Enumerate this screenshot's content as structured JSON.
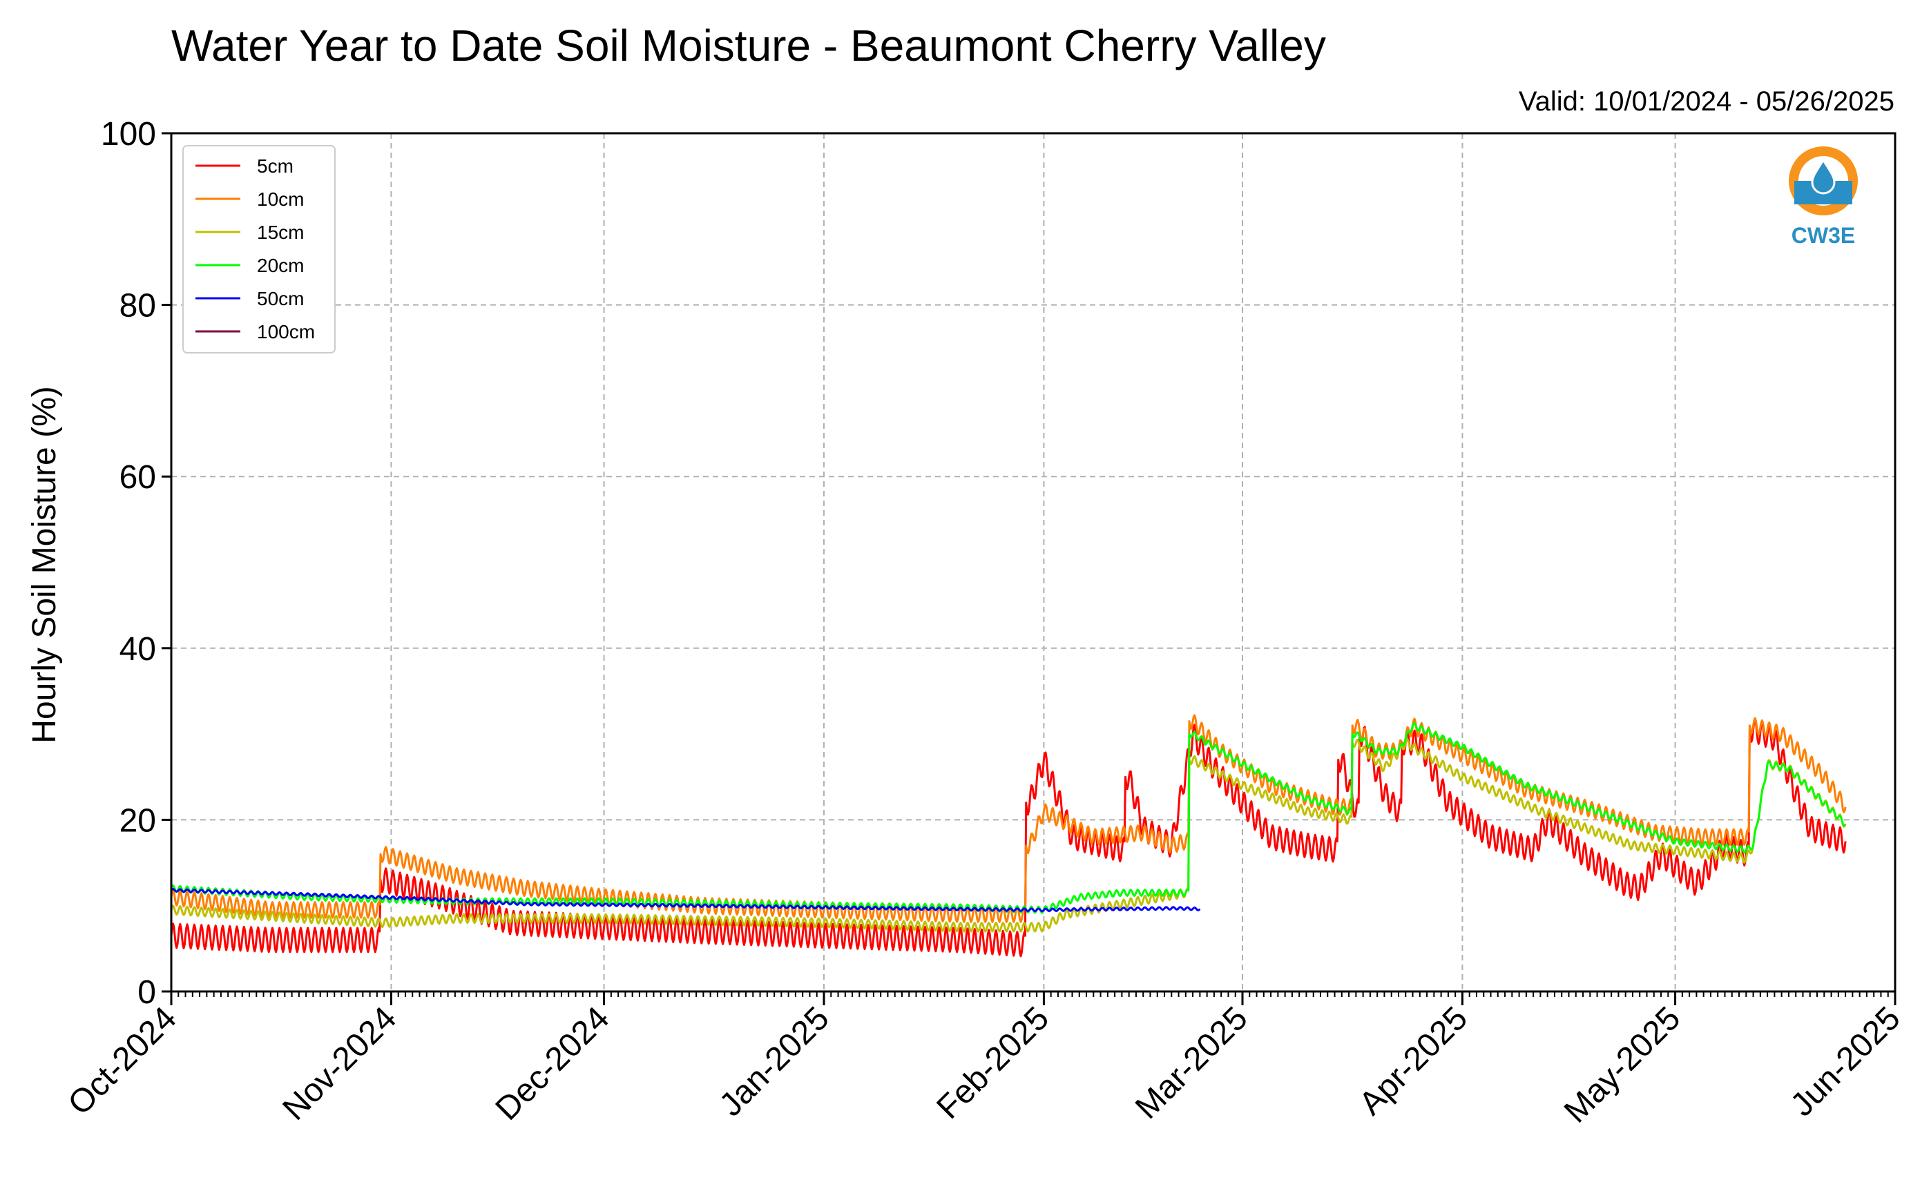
{
  "chart_data": {
    "type": "line",
    "title": "Water Year to Date Soil Moisture - Beaumont Cherry Valley",
    "subtitle": "Valid: 10/01/2024 - 05/26/2025",
    "ylabel": "Hourly Soil Moisture (%)",
    "xlabel": "",
    "ylim": [
      0,
      100
    ],
    "y_ticks": [
      0,
      20,
      40,
      60,
      80,
      100
    ],
    "x_ticks": [
      {
        "label": "Oct-2024",
        "date": "2024-10-01"
      },
      {
        "label": "Nov-2024",
        "date": "2024-11-01"
      },
      {
        "label": "Dec-2024",
        "date": "2024-12-01"
      },
      {
        "label": "Jan-2025",
        "date": "2025-01-01"
      },
      {
        "label": "Feb-2025",
        "date": "2025-02-01"
      },
      {
        "label": "Mar-2025",
        "date": "2025-03-01"
      },
      {
        "label": "Apr-2025",
        "date": "2025-04-01"
      },
      {
        "label": "May-2025",
        "date": "2025-05-01"
      },
      {
        "label": "Jun-2025",
        "date": "2025-06-01"
      }
    ],
    "xlim": [
      "2024-10-01",
      "2025-06-01"
    ],
    "grid": true,
    "legend_position": "top-left",
    "series": [
      {
        "name": "5cm",
        "color": "#ff0000",
        "points": [
          [
            "2024-10-01",
            6.5
          ],
          [
            "2024-10-15",
            6.0
          ],
          [
            "2024-10-30",
            6.0
          ],
          [
            "2024-10-31",
            13.0
          ],
          [
            "2024-11-08",
            11.0
          ],
          [
            "2024-11-18",
            8.0
          ],
          [
            "2024-12-01",
            7.5
          ],
          [
            "2024-12-15",
            7.0
          ],
          [
            "2025-01-01",
            6.5
          ],
          [
            "2025-01-20",
            6.0
          ],
          [
            "2025-01-29",
            5.5
          ],
          [
            "2025-01-30",
            22.0
          ],
          [
            "2025-02-01",
            27.0
          ],
          [
            "2025-02-05",
            18.0
          ],
          [
            "2025-02-12",
            16.5
          ],
          [
            "2025-02-13",
            25.0
          ],
          [
            "2025-02-15",
            19.0
          ],
          [
            "2025-02-19",
            17.0
          ],
          [
            "2025-02-22",
            30.0
          ],
          [
            "2025-02-25",
            26.0
          ],
          [
            "2025-03-05",
            18.0
          ],
          [
            "2025-03-10",
            17.0
          ],
          [
            "2025-03-14",
            16.5
          ],
          [
            "2025-03-15",
            27.0
          ],
          [
            "2025-03-17",
            21.0
          ],
          [
            "2025-03-18",
            30.0
          ],
          [
            "2025-03-21",
            23.0
          ],
          [
            "2025-03-23",
            21.0
          ],
          [
            "2025-03-24",
            29.0
          ],
          [
            "2025-03-26",
            29.0
          ],
          [
            "2025-03-30",
            22.0
          ],
          [
            "2025-04-05",
            18.0
          ],
          [
            "2025-04-11",
            16.5
          ],
          [
            "2025-04-13",
            20.0
          ],
          [
            "2025-04-18",
            16.0
          ],
          [
            "2025-04-24",
            12.5
          ],
          [
            "2025-04-26",
            12.0
          ],
          [
            "2025-04-29",
            16.0
          ],
          [
            "2025-05-04",
            12.5
          ],
          [
            "2025-05-08",
            17.0
          ],
          [
            "2025-05-11",
            16.0
          ],
          [
            "2025-05-12",
            30.5
          ],
          [
            "2025-05-15",
            29.5
          ],
          [
            "2025-05-18",
            23.0
          ],
          [
            "2025-05-20",
            19.0
          ],
          [
            "2025-05-25",
            17.5
          ]
        ]
      },
      {
        "name": "10cm",
        "color": "#ff7f00",
        "points": [
          [
            "2024-10-01",
            11.0
          ],
          [
            "2024-10-15",
            9.5
          ],
          [
            "2024-10-30",
            9.5
          ],
          [
            "2024-10-31",
            16.0
          ],
          [
            "2024-11-10",
            13.5
          ],
          [
            "2024-11-20",
            12.0
          ],
          [
            "2024-12-01",
            11.0
          ],
          [
            "2024-12-15",
            10.0
          ],
          [
            "2025-01-01",
            9.5
          ],
          [
            "2025-01-20",
            9.0
          ],
          [
            "2025-01-29",
            9.0
          ],
          [
            "2025-01-30",
            17.0
          ],
          [
            "2025-02-01",
            21.0
          ],
          [
            "2025-02-08",
            18.0
          ],
          [
            "2025-02-15",
            18.5
          ],
          [
            "2025-02-19",
            17.0
          ],
          [
            "2025-02-21",
            17.5
          ],
          [
            "2025-02-22",
            31.5
          ],
          [
            "2025-02-26",
            28.0
          ],
          [
            "2025-03-05",
            24.0
          ],
          [
            "2025-03-14",
            21.5
          ],
          [
            "2025-03-16",
            21.5
          ],
          [
            "2025-03-17",
            31.0
          ],
          [
            "2025-03-20",
            28.0
          ],
          [
            "2025-03-23",
            28.0
          ],
          [
            "2025-03-25",
            31.0
          ],
          [
            "2025-03-30",
            28.5
          ],
          [
            "2025-04-10",
            23.5
          ],
          [
            "2025-04-20",
            21.0
          ],
          [
            "2025-04-28",
            18.5
          ],
          [
            "2025-05-05",
            18.0
          ],
          [
            "2025-05-11",
            18.0
          ],
          [
            "2025-05-12",
            31.0
          ],
          [
            "2025-05-16",
            30.0
          ],
          [
            "2025-05-22",
            25.0
          ],
          [
            "2025-05-25",
            21.5
          ]
        ]
      },
      {
        "name": "15cm",
        "color": "#bfbf00",
        "points": [
          [
            "2024-10-01",
            9.5
          ],
          [
            "2024-10-20",
            8.5
          ],
          [
            "2024-10-31",
            8.0
          ],
          [
            "2024-11-10",
            8.5
          ],
          [
            "2024-12-01",
            8.5
          ],
          [
            "2025-01-01",
            8.0
          ],
          [
            "2025-01-20",
            7.5
          ],
          [
            "2025-02-01",
            7.5
          ],
          [
            "2025-02-04",
            9.0
          ],
          [
            "2025-02-21",
            11.5
          ],
          [
            "2025-02-22",
            27.0
          ],
          [
            "2025-03-01",
            24.0
          ],
          [
            "2025-03-10",
            21.0
          ],
          [
            "2025-03-16",
            20.0
          ],
          [
            "2025-03-17",
            29.0
          ],
          [
            "2025-03-21",
            26.0
          ],
          [
            "2025-03-24",
            29.0
          ],
          [
            "2025-04-01",
            25.0
          ],
          [
            "2025-04-12",
            21.0
          ],
          [
            "2025-04-25",
            17.0
          ],
          [
            "2025-05-11",
            15.5
          ],
          [
            "2025-05-12",
            17.0
          ],
          [
            "2025-05-14",
            26.5
          ],
          [
            "2025-05-17",
            26.0
          ],
          [
            "2025-05-25",
            19.5
          ]
        ]
      },
      {
        "name": "20cm",
        "color": "#00ff00",
        "points": [
          [
            "2024-10-01",
            12.0
          ],
          [
            "2024-10-20",
            11.0
          ],
          [
            "2024-11-10",
            10.5
          ],
          [
            "2024-12-01",
            10.5
          ],
          [
            "2025-01-01",
            10.0
          ],
          [
            "2025-01-20",
            9.8
          ],
          [
            "2025-02-01",
            9.5
          ],
          [
            "2025-02-06",
            11.0
          ],
          [
            "2025-02-12",
            11.5
          ],
          [
            "2025-02-21",
            11.5
          ],
          [
            "2025-02-22",
            30.0
          ],
          [
            "2025-03-01",
            26.5
          ],
          [
            "2025-03-10",
            22.5
          ],
          [
            "2025-03-16",
            21.0
          ],
          [
            "2025-03-17",
            30.0
          ],
          [
            "2025-03-20",
            28.0
          ],
          [
            "2025-03-23",
            28.0
          ],
          [
            "2025-03-25",
            31.0
          ],
          [
            "2025-04-01",
            28.5
          ],
          [
            "2025-04-10",
            24.0
          ],
          [
            "2025-04-20",
            21.0
          ],
          [
            "2025-05-01",
            17.5
          ],
          [
            "2025-05-11",
            16.5
          ],
          [
            "2025-05-12",
            17.0
          ],
          [
            "2025-05-14",
            26.5
          ],
          [
            "2025-05-17",
            26.0
          ],
          [
            "2025-05-25",
            19.5
          ]
        ]
      },
      {
        "name": "50cm",
        "color": "#0000ff",
        "points": [
          [
            "2024-10-01",
            11.8
          ],
          [
            "2024-10-20",
            11.3
          ],
          [
            "2024-11-05",
            10.8
          ],
          [
            "2024-11-20",
            10.2
          ],
          [
            "2024-12-15",
            10.0
          ],
          [
            "2025-01-01",
            9.8
          ],
          [
            "2025-01-20",
            9.6
          ],
          [
            "2025-02-01",
            9.5
          ],
          [
            "2025-02-10",
            9.6
          ],
          [
            "2025-02-20",
            9.7
          ],
          [
            "2025-02-23",
            9.6
          ]
        ]
      },
      {
        "name": "100cm",
        "color": "#7f0040",
        "points": []
      }
    ]
  },
  "logo": {
    "text": "CW3E",
    "color": "#2a8fc4",
    "accent": "#f7941d"
  }
}
